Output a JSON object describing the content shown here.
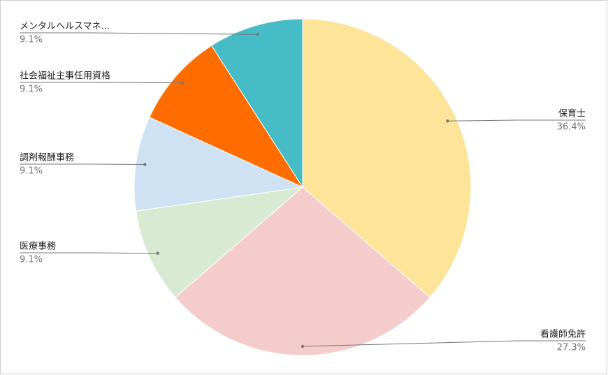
{
  "chart_data": {
    "type": "pie",
    "categories": [
      "保育士",
      "看護師免許",
      "医療事務",
      "調剤報酬事務",
      "社会福祉主事任用資格",
      "メンタルヘルスマネ..."
    ],
    "values": [
      36.4,
      27.3,
      9.1,
      9.1,
      9.1,
      9.1
    ],
    "value_labels": [
      "36.4%",
      "27.3%",
      "9.1%",
      "9.1%",
      "9.1%",
      "9.1%"
    ],
    "colors": [
      "#fce599",
      "#f4cccc",
      "#d9ead3",
      "#cfe2f3",
      "#ff6d01",
      "#46bdc6"
    ]
  }
}
